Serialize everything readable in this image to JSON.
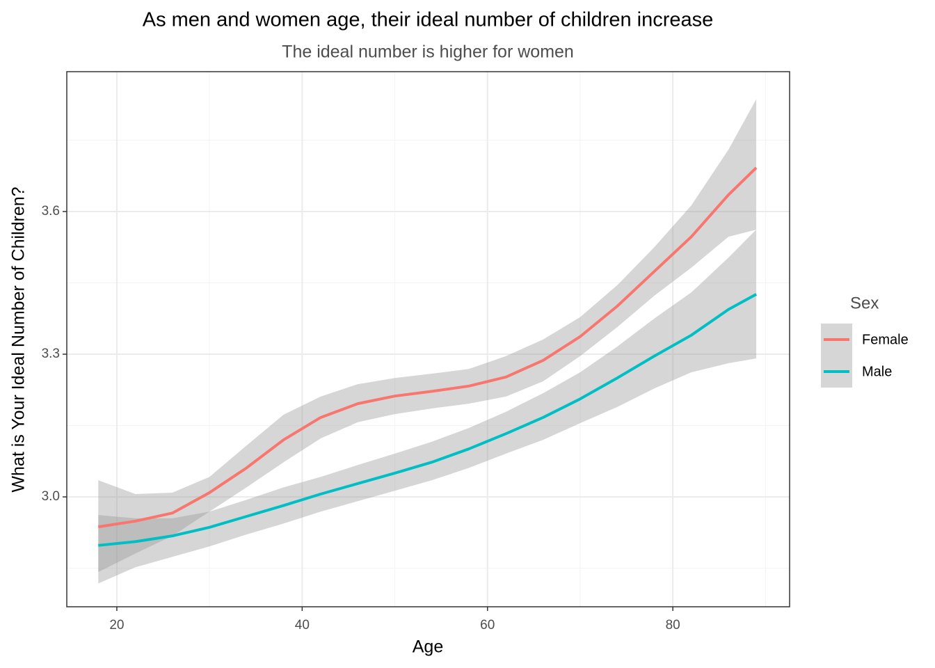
{
  "chart_data": {
    "type": "line",
    "title": "As men and women age, their ideal number of children increase",
    "subtitle": "The ideal number is higher for women",
    "x_label": "Age",
    "y_label": "What is Your Ideal Number of Children?",
    "legend_title": "Sex",
    "legend_position": "right",
    "grid": true,
    "band_color": "#999999",
    "x": [
      18,
      22,
      26,
      30,
      34,
      38,
      42,
      46,
      50,
      54,
      58,
      62,
      66,
      70,
      74,
      78,
      82,
      86,
      89
    ],
    "series": [
      {
        "name": "Female",
        "color": "#F8766D",
        "values": [
          2.937,
          2.949,
          2.966,
          3.009,
          3.061,
          3.12,
          3.167,
          3.196,
          3.212,
          3.222,
          3.233,
          3.252,
          3.287,
          3.337,
          3.401,
          3.474,
          3.547,
          3.635,
          3.692
        ],
        "ci_upper": [
          3.035,
          3.006,
          3.009,
          3.042,
          3.108,
          3.173,
          3.211,
          3.237,
          3.25,
          3.259,
          3.269,
          3.296,
          3.331,
          3.378,
          3.445,
          3.525,
          3.613,
          3.73,
          3.836
        ],
        "ci_lower": [
          2.842,
          2.881,
          2.918,
          2.969,
          3.02,
          3.073,
          3.123,
          3.157,
          3.174,
          3.186,
          3.196,
          3.211,
          3.243,
          3.296,
          3.357,
          3.423,
          3.482,
          3.547,
          3.562
        ]
      },
      {
        "name": "Male",
        "color": "#00BFC4",
        "values": [
          2.898,
          2.906,
          2.918,
          2.936,
          2.959,
          2.982,
          3.006,
          3.028,
          3.05,
          3.073,
          3.101,
          3.133,
          3.167,
          3.206,
          3.25,
          3.296,
          3.34,
          3.394,
          3.426
        ],
        "ci_upper": [
          2.962,
          2.955,
          2.955,
          2.969,
          2.994,
          3.02,
          3.042,
          3.067,
          3.091,
          3.116,
          3.145,
          3.179,
          3.218,
          3.262,
          3.316,
          3.375,
          3.43,
          3.503,
          3.562
        ],
        "ci_lower": [
          2.818,
          2.852,
          2.874,
          2.896,
          2.921,
          2.944,
          2.969,
          2.991,
          3.013,
          3.035,
          3.061,
          3.091,
          3.12,
          3.155,
          3.189,
          3.228,
          3.262,
          3.281,
          3.291
        ]
      }
    ],
    "xlim": [
      14.6,
      92.6
    ],
    "ylim": [
      2.769,
      3.894
    ],
    "xticks": [
      20,
      40,
      60,
      80
    ],
    "yticks": [
      {
        "value": 3.0,
        "label": "3.0"
      },
      {
        "value": 3.3,
        "label": "3.3"
      },
      {
        "value": 3.6,
        "label": "3.6"
      }
    ],
    "xminor": [
      30,
      50,
      70,
      90
    ],
    "yminor": [
      2.85,
      3.15,
      3.45,
      3.75
    ]
  }
}
